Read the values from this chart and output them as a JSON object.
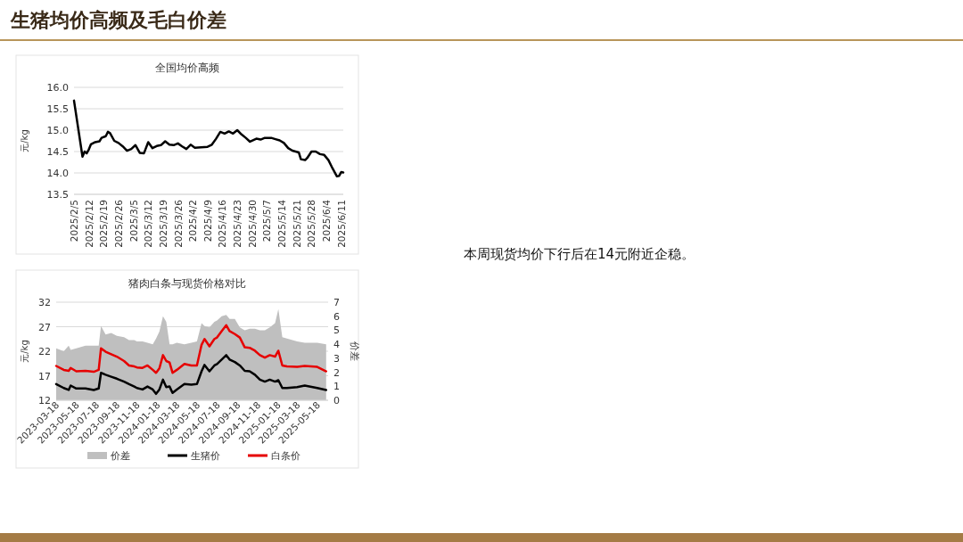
{
  "chart_data": [
    {
      "type": "line",
      "title": "全国均价高频",
      "ylabel": "元/kg",
      "grid": "y",
      "xlim": [
        "2025-02-05",
        "2025-06-12"
      ],
      "ylim": [
        13.5,
        16
      ],
      "yticks": [
        {
          "value": 13.5,
          "label": "13.5"
        },
        {
          "value": 14,
          "label": "14.0"
        },
        {
          "value": 14.5,
          "label": "14.5"
        },
        {
          "value": 15,
          "label": "15.0"
        },
        {
          "value": 15.5,
          "label": "15.5"
        },
        {
          "value": 16,
          "label": "16.0"
        }
      ],
      "xticks": [
        {
          "value": "2025-02-05",
          "label": "2025/2/5"
        },
        {
          "value": "2025-02-12",
          "label": "2025/2/12"
        },
        {
          "value": "2025-02-19",
          "label": "2025/2/19"
        },
        {
          "value": "2025-02-26",
          "label": "2025/2/26"
        },
        {
          "value": "2025-03-05",
          "label": "2025/3/5"
        },
        {
          "value": "2025-03-12",
          "label": "2025/3/12"
        },
        {
          "value": "2025-03-19",
          "label": "2025/3/19"
        },
        {
          "value": "2025-03-26",
          "label": "2025/3/26"
        },
        {
          "value": "2025-04-02",
          "label": "2025/4/2"
        },
        {
          "value": "2025-04-09",
          "label": "2025/4/9"
        },
        {
          "value": "2025-04-16",
          "label": "2025/4/16"
        },
        {
          "value": "2025-04-23",
          "label": "2025/4/23"
        },
        {
          "value": "2025-04-30",
          "label": "2025/4/30"
        },
        {
          "value": "2025-05-07",
          "label": "2025/5/7"
        },
        {
          "value": "2025-05-14",
          "label": "2025/5/14"
        },
        {
          "value": "2025-05-21",
          "label": "2025/5/21"
        },
        {
          "value": "2025-05-28",
          "label": "2025/5/28"
        },
        {
          "value": "2025-06-04",
          "label": "2025/6/4"
        },
        {
          "value": "2025-06-11",
          "label": "2025/6/11"
        }
      ],
      "x": [
        "2025-02-05",
        "2025-02-09",
        "2025-02-10",
        "2025-02-11",
        "2025-02-12",
        "2025-02-13",
        "2025-02-15",
        "2025-02-17",
        "2025-02-18",
        "2025-02-20",
        "2025-02-21",
        "2025-02-22",
        "2025-02-24",
        "2025-02-26",
        "2025-02-28",
        "2025-03-02",
        "2025-03-04",
        "2025-03-06",
        "2025-03-08",
        "2025-03-10",
        "2025-03-12",
        "2025-03-14",
        "2025-03-16",
        "2025-03-18",
        "2025-03-20",
        "2025-03-22",
        "2025-03-24",
        "2025-03-26",
        "2025-03-28",
        "2025-03-30",
        "2025-04-01",
        "2025-04-03",
        "2025-04-06",
        "2025-04-09",
        "2025-04-11",
        "2025-04-13",
        "2025-04-15",
        "2025-04-17",
        "2025-04-19",
        "2025-04-21",
        "2025-04-23",
        "2025-04-25",
        "2025-04-27",
        "2025-04-29",
        "2025-05-02",
        "2025-05-04",
        "2025-05-06",
        "2025-05-09",
        "2025-05-11",
        "2025-05-13",
        "2025-05-15",
        "2025-05-17",
        "2025-05-19",
        "2025-05-22",
        "2025-05-23",
        "2025-05-25",
        "2025-05-26",
        "2025-05-28",
        "2025-05-30",
        "2025-06-01",
        "2025-06-03",
        "2025-06-05",
        "2025-06-07",
        "2025-06-09",
        "2025-06-10",
        "2025-06-11",
        "2025-06-12"
      ],
      "series": [
        {
          "color": "#000000",
          "values": [
            15.69,
            14.38,
            14.5,
            14.46,
            14.55,
            14.67,
            14.72,
            14.74,
            14.82,
            14.86,
            14.96,
            14.93,
            14.75,
            14.7,
            14.62,
            14.52,
            14.56,
            14.65,
            14.47,
            14.46,
            14.72,
            14.58,
            14.63,
            14.65,
            14.74,
            14.66,
            14.65,
            14.69,
            14.62,
            14.56,
            14.66,
            14.59,
            14.6,
            14.61,
            14.66,
            14.8,
            14.96,
            14.92,
            14.97,
            14.92,
            15.0,
            14.9,
            14.82,
            14.73,
            14.8,
            14.78,
            14.82,
            14.82,
            14.79,
            14.76,
            14.7,
            14.58,
            14.52,
            14.48,
            14.32,
            14.3,
            14.35,
            14.5,
            14.5,
            14.44,
            14.42,
            14.3,
            14.1,
            13.92,
            13.93,
            14.02,
            14.01
          ]
        }
      ]
    },
    {
      "type": "line",
      "title": "猪肉白条与现货价格对比",
      "ylabel": "元/kg",
      "y2label": "价差",
      "grid": "y",
      "legend": "bottom",
      "xlim": [
        "2023-03-18",
        "2025-06-20"
      ],
      "ylim": [
        12,
        32
      ],
      "yticks": [
        12,
        17,
        22,
        27,
        32
      ],
      "y2lim": [
        0,
        7
      ],
      "y2ticks": [
        0,
        1,
        2,
        3,
        4,
        5,
        6,
        7
      ],
      "xticks": [
        "2023-03-18",
        "2023-05-18",
        "2023-07-18",
        "2023-09-18",
        "2023-11-18",
        "2024-01-18",
        "2024-03-18",
        "2024-05-18",
        "2024-07-18",
        "2024-09-18",
        "2024-11-18",
        "2025-01-18",
        "2025-03-18",
        "2025-05-18"
      ],
      "x": [
        "2023-03-18",
        "2023-04-10",
        "2023-04-25",
        "2023-05-01",
        "2023-05-18",
        "2023-06-15",
        "2023-07-10",
        "2023-07-25",
        "2023-08-01",
        "2023-08-15",
        "2023-09-01",
        "2023-09-18",
        "2023-10-10",
        "2023-10-25",
        "2023-11-10",
        "2023-11-18",
        "2023-12-05",
        "2023-12-20",
        "2024-01-05",
        "2024-01-15",
        "2024-01-25",
        "2024-02-05",
        "2024-02-15",
        "2024-02-25",
        "2024-03-05",
        "2024-03-18",
        "2024-04-10",
        "2024-05-01",
        "2024-05-18",
        "2024-06-01",
        "2024-06-10",
        "2024-06-25",
        "2024-07-10",
        "2024-07-18",
        "2024-08-01",
        "2024-08-15",
        "2024-08-25",
        "2024-09-10",
        "2024-09-25",
        "2024-10-10",
        "2024-10-25",
        "2024-11-10",
        "2024-11-25",
        "2024-12-10",
        "2024-12-25",
        "2025-01-10",
        "2025-01-20",
        "2025-02-01",
        "2025-02-15",
        "2025-03-18",
        "2025-04-10",
        "2025-05-18",
        "2025-06-14"
      ],
      "series": [
        {
          "name": "价差",
          "type": "area",
          "axis": "y2",
          "color": "#bfbfbf",
          "values": [
            3.7,
            3.5,
            3.9,
            3.6,
            3.7,
            3.9,
            3.9,
            3.9,
            5.3,
            4.7,
            4.8,
            4.6,
            4.5,
            4.3,
            4.3,
            4.2,
            4.2,
            4.1,
            4.0,
            4.4,
            4.9,
            6.0,
            5.6,
            4.0,
            4.0,
            4.1,
            4.0,
            4.1,
            4.2,
            5.5,
            5.3,
            5.2,
            5.6,
            5.7,
            6.0,
            6.1,
            5.8,
            5.8,
            5.2,
            5.0,
            5.1,
            5.1,
            5.0,
            5.0,
            5.2,
            5.5,
            6.5,
            4.5,
            4.4,
            4.2,
            4.1,
            4.1,
            4.0
          ]
        },
        {
          "name": "生猪价",
          "color": "#000000",
          "values": [
            15.3,
            14.5,
            14.1,
            15.0,
            14.4,
            14.4,
            14.1,
            14.4,
            17.6,
            17.2,
            16.8,
            16.4,
            15.8,
            15.3,
            14.8,
            14.5,
            14.2,
            14.8,
            14.2,
            13.3,
            14.2,
            16.2,
            14.7,
            14.8,
            13.5,
            14.2,
            15.3,
            15.2,
            15.3,
            17.9,
            19.2,
            17.9,
            19.1,
            19.4,
            20.3,
            21.2,
            20.3,
            19.8,
            19.1,
            18.0,
            17.9,
            17.2,
            16.2,
            15.8,
            16.2,
            15.8,
            16.1,
            14.5,
            14.5,
            14.7,
            15.0,
            14.5,
            14.1
          ]
        },
        {
          "name": "白条价",
          "color": "#e60000",
          "values": [
            19.0,
            18.2,
            18.0,
            18.6,
            17.9,
            18.0,
            17.8,
            18.2,
            22.6,
            21.9,
            21.4,
            20.9,
            20.0,
            19.1,
            18.9,
            18.7,
            18.6,
            19.1,
            18.2,
            17.6,
            18.5,
            21.2,
            20.0,
            19.7,
            17.6,
            18.2,
            19.4,
            19.1,
            19.1,
            23.3,
            24.5,
            23.0,
            24.5,
            24.8,
            26.1,
            27.3,
            26.1,
            25.5,
            24.8,
            22.8,
            22.7,
            22.1,
            21.2,
            20.7,
            21.2,
            20.9,
            22.1,
            19.1,
            18.9,
            18.8,
            19.0,
            18.8,
            17.9
          ]
        }
      ]
    },
    {
      "type": "other",
      "title": "生猪均价高频及毛白价差",
      "annotations": [
        "本周现货均价下行后在14元附近企稳。"
      ]
    }
  ]
}
